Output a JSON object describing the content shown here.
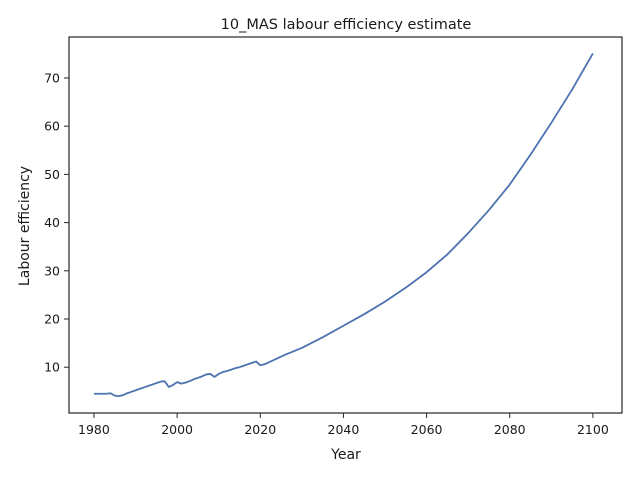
{
  "chart_data": {
    "type": "line",
    "title": "10_MAS labour efficiency estimate",
    "xlabel": "Year",
    "ylabel": "Labour efficiency",
    "xlim": [
      1974,
      2107
    ],
    "ylim": [
      0.5,
      78.5
    ],
    "grid": false,
    "legend": "none",
    "line_color": "#4c72b0",
    "xticks": [
      "1980",
      "2000",
      "2020",
      "2040",
      "2060",
      "2080",
      "2100"
    ],
    "yticks": [
      "10",
      "20",
      "30",
      "40",
      "50",
      "60",
      "70"
    ],
    "series": [
      {
        "x": [
          1980,
          1981,
          1982,
          1983,
          1984,
          1985,
          1986,
          1987,
          1988,
          1989,
          1990,
          1991,
          1992,
          1993,
          1994,
          1995,
          1996,
          1997,
          1998,
          1999,
          2000,
          2001,
          2002,
          2003,
          2004,
          2005,
          2006,
          2007,
          2008,
          2009,
          2010,
          2011,
          2012,
          2013,
          2014,
          2015,
          2016,
          2017,
          2018,
          2019,
          2020,
          2021,
          2022,
          2024,
          2026,
          2028,
          2030,
          2035,
          2040,
          2045,
          2050,
          2055,
          2060,
          2065,
          2070,
          2075,
          2080,
          2085,
          2090,
          2095,
          2100
        ],
        "y": [
          4.5,
          4.5,
          4.5,
          4.5,
          4.6,
          4.1,
          4.0,
          4.2,
          4.6,
          4.9,
          5.2,
          5.5,
          5.8,
          6.1,
          6.4,
          6.7,
          7.0,
          7.1,
          5.9,
          6.3,
          6.9,
          6.6,
          6.8,
          7.1,
          7.5,
          7.8,
          8.1,
          8.5,
          8.6,
          8.0,
          8.6,
          9.0,
          9.2,
          9.5,
          9.8,
          10.0,
          10.3,
          10.6,
          10.9,
          11.2,
          10.4,
          10.6,
          11.0,
          11.8,
          12.6,
          13.3,
          14.0,
          16.2,
          18.6,
          21.0,
          23.6,
          26.5,
          29.7,
          33.4,
          37.8,
          42.6,
          47.9,
          54.1,
          60.7,
          67.6,
          75.1
        ]
      }
    ]
  }
}
